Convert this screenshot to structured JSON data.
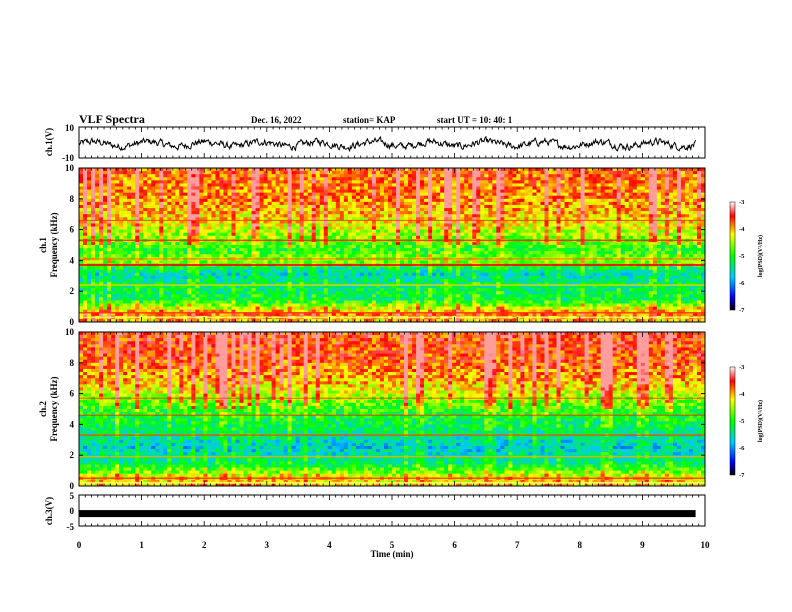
{
  "header": {
    "title": "VLF Spectra",
    "date": "Dec. 16, 2022",
    "station": "station= KAP",
    "start": "start  UT  =   10: 40: 1"
  },
  "colors": {
    "waveform": "#000000",
    "colormap": [
      "#000000",
      "#0000ff",
      "#00c8ff",
      "#00ff00",
      "#ffff00",
      "#ff0000",
      "#ffffff"
    ]
  },
  "chart_data": [
    {
      "type": "line",
      "name": "ch1-waveform",
      "ylabel": "ch.1(V)",
      "ylim": [
        -10,
        10
      ],
      "yticks": [
        "10",
        "-10"
      ],
      "xlim": [
        0,
        10
      ],
      "description_values": "noisy waveform around -1 V, amplitude about +/-4 V"
    },
    {
      "type": "heatmap",
      "name": "ch1-spectrogram",
      "ylabel_line1": "ch.1",
      "ylabel_line2": "Frequency  (kHz)",
      "ylim": [
        0,
        10
      ],
      "yticks": [
        "0",
        "2",
        "4",
        "6",
        "8",
        "10"
      ],
      "xlim": [
        0,
        10
      ],
      "colorbar": {
        "label": "log(PSD)(V²/Hz)",
        "range": [
          -7,
          -3
        ],
        "ticks": [
          "-3",
          "-4",
          "-5",
          "-6",
          "-7"
        ]
      }
    },
    {
      "type": "heatmap",
      "name": "ch2-spectrogram",
      "ylabel_line1": "ch.2",
      "ylabel_line2": "Frequency  (kHz)",
      "ylim": [
        0,
        10
      ],
      "yticks": [
        "0",
        "2",
        "4",
        "6",
        "8",
        "10"
      ],
      "xlim": [
        0,
        10
      ],
      "colorbar": {
        "label": "log(PSD)(V²/Hz)",
        "range": [
          -7,
          -3
        ],
        "ticks": [
          "-3",
          "-4",
          "-5",
          "-6",
          "-7"
        ]
      }
    },
    {
      "type": "line",
      "name": "ch3-waveform",
      "ylabel": "ch.3(V)",
      "ylim": [
        -5,
        5
      ],
      "yticks": [
        "5",
        "0",
        "-5"
      ],
      "xlim": [
        0,
        9.85
      ],
      "values_note": "constant near -1 V"
    }
  ],
  "xaxis": {
    "label": "Time  (min)",
    "ticks": [
      "0",
      "1",
      "2",
      "3",
      "4",
      "5",
      "6",
      "7",
      "8",
      "9",
      "10"
    ]
  }
}
